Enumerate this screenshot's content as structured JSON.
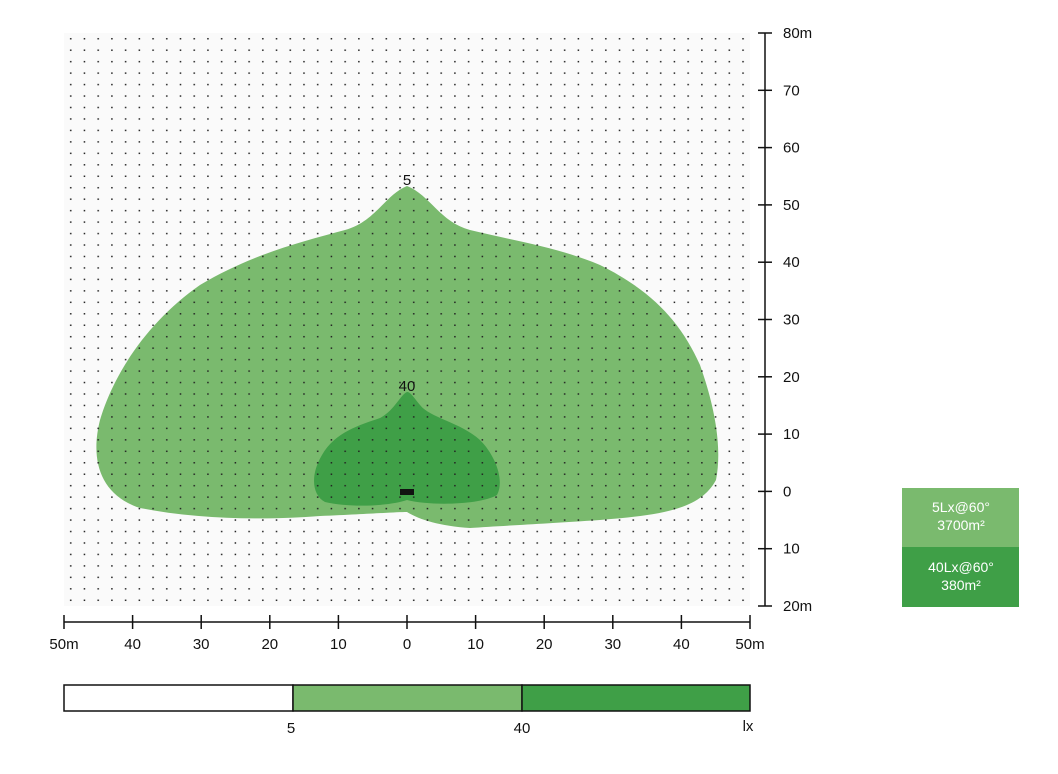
{
  "plot": {
    "x_axis_labels": [
      "50m",
      "40",
      "30",
      "20",
      "10",
      "0",
      "10",
      "20",
      "30",
      "40",
      "50m"
    ],
    "y_axis_labels": [
      "80m",
      "70",
      "60",
      "50",
      "40",
      "30",
      "20",
      "10",
      "0",
      "10",
      "20m"
    ],
    "contour_labels": [
      "5",
      "40"
    ]
  },
  "legend": [
    {
      "level": "5Lx@60°",
      "area": "3700m²"
    },
    {
      "level": "40Lx@60°",
      "area": "380m²"
    }
  ],
  "color_bar": {
    "labels": [
      "5",
      "40",
      "lx"
    ]
  }
}
